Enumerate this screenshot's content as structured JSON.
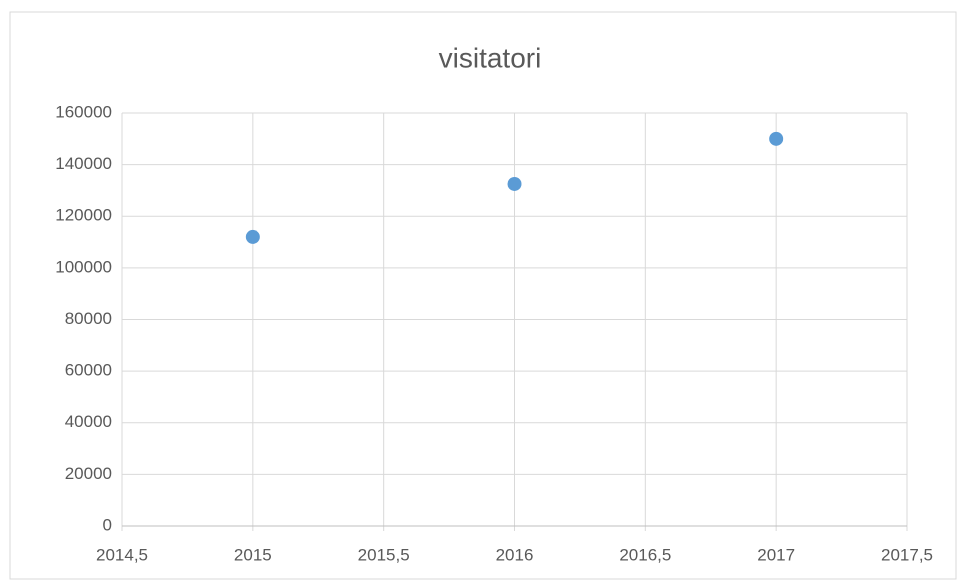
{
  "chart_data": {
    "type": "scatter",
    "title": "visitatori",
    "series": [
      {
        "name": "visitatori",
        "color": "#5b9bd5",
        "x": [
          2015,
          2016,
          2017
        ],
        "values": [
          112000,
          132500,
          150000
        ]
      }
    ],
    "xlim": [
      2014.5,
      2017.5
    ],
    "xticks": [
      {
        "value": 2014.5,
        "label": "2014,5"
      },
      2015,
      {
        "value": 2015.5,
        "label": "2015,5"
      },
      2016,
      {
        "value": 2016.5,
        "label": "2016,5"
      },
      2017,
      {
        "value": 2017.5,
        "label": "2017,5"
      }
    ],
    "ylim": [
      0,
      160000
    ],
    "yticks": [
      0,
      20000,
      40000,
      60000,
      80000,
      100000,
      120000,
      140000,
      160000
    ],
    "grid": true
  }
}
